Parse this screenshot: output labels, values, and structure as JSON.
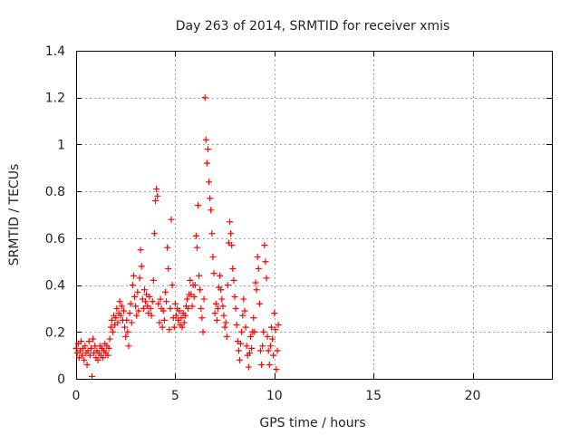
{
  "chart_data": {
    "type": "scatter",
    "title": "Day 263 of 2014, SRMTID for receiver xmis",
    "xlabel": "GPS time / hours",
    "ylabel": "SRMTID / TECUs",
    "xlim": [
      0,
      24
    ],
    "ylim": [
      0,
      1.4
    ],
    "grid": true,
    "marker": "plus",
    "x_ticks": [
      0,
      5,
      10,
      15,
      20
    ],
    "y_ticks": [
      0,
      0.2,
      0.4,
      0.6,
      0.8,
      1,
      1.2,
      1.4
    ],
    "x_tick_labels": [
      "0",
      "5",
      "10",
      "15",
      "20"
    ],
    "y_tick_labels": [
      "0",
      "0.2",
      "0.4",
      "0.6",
      "0.8",
      "1",
      "1.2",
      "1.4"
    ],
    "series": [
      {
        "name": "SRMTID",
        "color": "#ff0000",
        "points": [
          [
            0.0,
            0.13
          ],
          [
            0.05,
            0.11
          ],
          [
            0.1,
            0.15
          ],
          [
            0.15,
            0.09
          ],
          [
            0.2,
            0.12
          ],
          [
            0.25,
            0.16
          ],
          [
            0.3,
            0.1
          ],
          [
            0.35,
            0.13
          ],
          [
            0.4,
            0.08
          ],
          [
            0.45,
            0.14
          ],
          [
            0.5,
            0.11
          ],
          [
            0.55,
            0.06
          ],
          [
            0.6,
            0.12
          ],
          [
            0.65,
            0.16
          ],
          [
            0.7,
            0.1
          ],
          [
            0.75,
            0.13
          ],
          [
            0.8,
            0.01
          ],
          [
            0.85,
            0.17
          ],
          [
            0.9,
            0.11
          ],
          [
            0.95,
            0.14
          ],
          [
            1.0,
            0.09
          ],
          [
            1.05,
            0.12
          ],
          [
            1.1,
            0.08
          ],
          [
            1.15,
            0.11
          ],
          [
            1.2,
            0.14
          ],
          [
            1.25,
            0.1
          ],
          [
            1.3,
            0.13
          ],
          [
            1.35,
            0.09
          ],
          [
            1.4,
            0.12
          ],
          [
            1.45,
            0.15
          ],
          [
            1.5,
            0.11
          ],
          [
            1.55,
            0.14
          ],
          [
            1.6,
            0.1
          ],
          [
            1.65,
            0.13
          ],
          [
            1.7,
            0.17
          ],
          [
            1.75,
            0.22
          ],
          [
            1.8,
            0.25
          ],
          [
            1.85,
            0.2
          ],
          [
            1.9,
            0.27
          ],
          [
            1.95,
            0.23
          ],
          [
            2.0,
            0.26
          ],
          [
            2.05,
            0.3
          ],
          [
            2.1,
            0.24
          ],
          [
            2.15,
            0.28
          ],
          [
            2.2,
            0.33
          ],
          [
            2.25,
            0.27
          ],
          [
            2.3,
            0.31
          ],
          [
            2.35,
            0.25
          ],
          [
            2.4,
            0.29
          ],
          [
            2.45,
            0.22
          ],
          [
            2.5,
            0.18
          ],
          [
            2.55,
            0.25
          ],
          [
            2.6,
            0.2
          ],
          [
            2.65,
            0.14
          ],
          [
            2.7,
            0.28
          ],
          [
            2.75,
            0.32
          ],
          [
            2.8,
            0.24
          ],
          [
            2.85,
            0.4
          ],
          [
            2.9,
            0.44
          ],
          [
            2.95,
            0.35
          ],
          [
            3.0,
            0.31
          ],
          [
            3.05,
            0.27
          ],
          [
            3.1,
            0.37
          ],
          [
            3.15,
            0.29
          ],
          [
            3.2,
            0.43
          ],
          [
            3.25,
            0.55
          ],
          [
            3.3,
            0.48
          ],
          [
            3.35,
            0.34
          ],
          [
            3.4,
            0.3
          ],
          [
            3.45,
            0.38
          ],
          [
            3.5,
            0.33
          ],
          [
            3.55,
            0.36
          ],
          [
            3.6,
            0.31
          ],
          [
            3.65,
            0.28
          ],
          [
            3.7,
            0.35
          ],
          [
            3.75,
            0.3
          ],
          [
            3.8,
            0.27
          ],
          [
            3.85,
            0.33
          ],
          [
            3.9,
            0.42
          ],
          [
            3.95,
            0.62
          ],
          [
            4.0,
            0.76
          ],
          [
            4.05,
            0.81
          ],
          [
            4.1,
            0.78
          ],
          [
            4.15,
            0.32
          ],
          [
            4.2,
            0.24
          ],
          [
            4.25,
            0.34
          ],
          [
            4.3,
            0.3
          ],
          [
            4.35,
            0.22
          ],
          [
            4.4,
            0.29
          ],
          [
            4.45,
            0.25
          ],
          [
            4.5,
            0.37
          ],
          [
            4.55,
            0.33
          ],
          [
            4.6,
            0.56
          ],
          [
            4.65,
            0.47
          ],
          [
            4.7,
            0.21
          ],
          [
            4.75,
            0.3
          ],
          [
            4.8,
            0.68
          ],
          [
            4.85,
            0.4
          ],
          [
            4.9,
            0.26
          ],
          [
            4.95,
            0.22
          ],
          [
            5.0,
            0.32
          ],
          [
            5.05,
            0.27
          ],
          [
            5.1,
            0.3
          ],
          [
            5.15,
            0.25
          ],
          [
            5.2,
            0.29
          ],
          [
            5.25,
            0.23
          ],
          [
            5.3,
            0.26
          ],
          [
            5.35,
            0.22
          ],
          [
            5.4,
            0.28
          ],
          [
            5.45,
            0.24
          ],
          [
            5.5,
            0.27
          ],
          [
            5.55,
            0.31
          ],
          [
            5.6,
            0.34
          ],
          [
            5.65,
            0.3
          ],
          [
            5.7,
            0.36
          ],
          [
            5.75,
            0.42
          ],
          [
            5.8,
            0.36
          ],
          [
            5.85,
            0.31
          ],
          [
            5.9,
            0.4
          ],
          [
            5.95,
            0.35
          ],
          [
            6.0,
            0.4
          ],
          [
            6.05,
            0.61
          ],
          [
            6.1,
            0.56
          ],
          [
            6.15,
            0.74
          ],
          [
            6.2,
            0.44
          ],
          [
            6.25,
            0.38
          ],
          [
            6.3,
            0.3
          ],
          [
            6.35,
            0.26
          ],
          [
            6.4,
            0.2
          ],
          [
            6.45,
            0.34
          ],
          [
            6.5,
            1.2
          ],
          [
            6.55,
            1.02
          ],
          [
            6.6,
            0.92
          ],
          [
            6.65,
            0.98
          ],
          [
            6.7,
            0.84
          ],
          [
            6.75,
            0.77
          ],
          [
            6.8,
            0.72
          ],
          [
            6.85,
            0.62
          ],
          [
            6.9,
            0.52
          ],
          [
            6.95,
            0.45
          ],
          [
            7.0,
            0.28
          ],
          [
            7.05,
            0.32
          ],
          [
            7.1,
            0.25
          ],
          [
            7.15,
            0.3
          ],
          [
            7.2,
            0.39
          ],
          [
            7.25,
            0.44
          ],
          [
            7.3,
            0.38
          ],
          [
            7.35,
            0.34
          ],
          [
            7.4,
            0.31
          ],
          [
            7.45,
            0.27
          ],
          [
            7.5,
            0.22
          ],
          [
            7.55,
            0.24
          ],
          [
            7.6,
            0.18
          ],
          [
            7.65,
            0.4
          ],
          [
            7.7,
            0.58
          ],
          [
            7.75,
            0.67
          ],
          [
            7.8,
            0.62
          ],
          [
            7.85,
            0.57
          ],
          [
            7.9,
            0.47
          ],
          [
            7.95,
            0.42
          ],
          [
            8.0,
            0.35
          ],
          [
            8.05,
            0.3
          ],
          [
            8.1,
            0.23
          ],
          [
            8.15,
            0.16
          ],
          [
            8.2,
            0.12
          ],
          [
            8.25,
            0.08
          ],
          [
            8.3,
            0.15
          ],
          [
            8.35,
            0.2
          ],
          [
            8.4,
            0.27
          ],
          [
            8.45,
            0.34
          ],
          [
            8.5,
            0.29
          ],
          [
            8.55,
            0.22
          ],
          [
            8.6,
            0.14
          ],
          [
            8.65,
            0.1
          ],
          [
            8.7,
            0.05
          ],
          [
            8.75,
            0.11
          ],
          [
            8.8,
            0.18
          ],
          [
            8.85,
            0.13
          ],
          [
            8.9,
            0.2
          ],
          [
            8.95,
            0.26
          ],
          [
            9.0,
            0.2
          ],
          [
            9.05,
            0.41
          ],
          [
            9.1,
            0.38
          ],
          [
            9.15,
            0.52
          ],
          [
            9.2,
            0.47
          ],
          [
            9.25,
            0.32
          ],
          [
            9.3,
            0.12
          ],
          [
            9.35,
            0.06
          ],
          [
            9.4,
            0.14
          ],
          [
            9.45,
            0.2
          ],
          [
            9.5,
            0.57
          ],
          [
            9.55,
            0.5
          ],
          [
            9.6,
            0.43
          ],
          [
            9.65,
            0.18
          ],
          [
            9.7,
            0.12
          ],
          [
            9.75,
            0.06
          ],
          [
            9.8,
            0.14
          ],
          [
            9.85,
            0.22
          ],
          [
            9.9,
            0.17
          ],
          [
            9.95,
            0.1
          ],
          [
            10.0,
            0.28
          ],
          [
            10.05,
            0.21
          ],
          [
            10.1,
            0.04
          ],
          [
            10.15,
            0.12
          ],
          [
            10.2,
            0.23
          ]
        ]
      }
    ]
  }
}
